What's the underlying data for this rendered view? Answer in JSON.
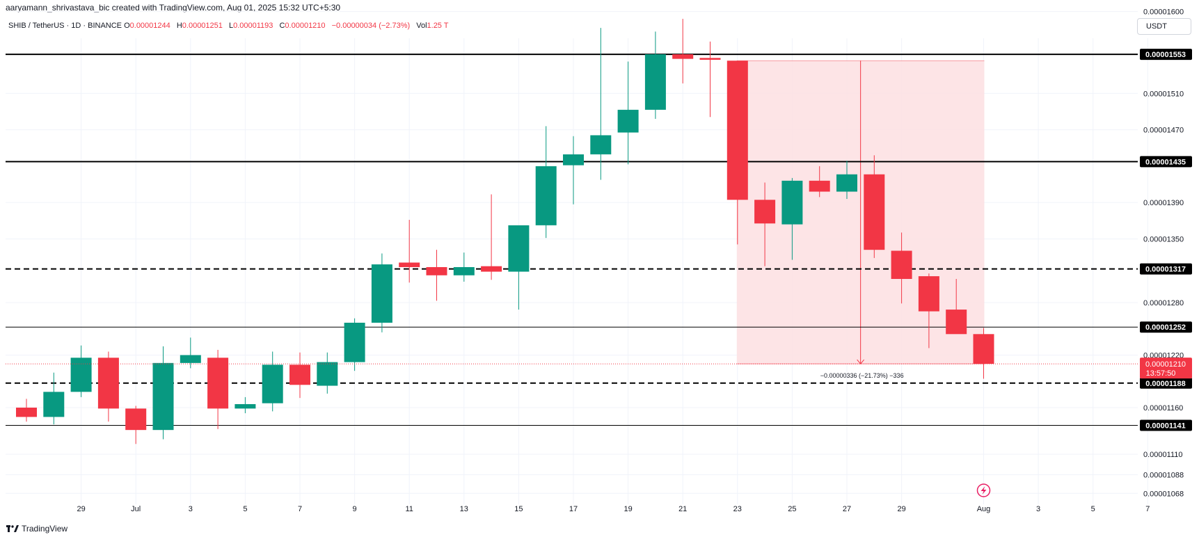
{
  "header": {
    "author_line": "aaryamann_shrivastava_bic created with TradingView.com, Aug 01, 2025 15:32 UTC+5:30",
    "symbol": "SHIB / TetherUS · 1D · BINANCE",
    "open_label": "O",
    "open": "0.00001244",
    "high_label": "H",
    "high": "0.00001251",
    "low_label": "L",
    "low": "0.00001193",
    "close_label": "C",
    "close": "0.00001210",
    "change": "−0.00000034 (−2.73%)",
    "vol_label": "Vol",
    "vol": "1.25 T"
  },
  "currency_button": "USDT",
  "footer": {
    "logo_text": "TradingView"
  },
  "colors": {
    "up": "#089981",
    "down": "#f23645",
    "grid": "#f0f3fa",
    "zone": "#fddfe2"
  },
  "chart_data": {
    "type": "candlestick",
    "title": "",
    "y_axis_ticks": [
      "0.00001600",
      "0.00001510",
      "0.00001470",
      "0.00001390",
      "0.00001350",
      "0.00001280",
      "0.00001220",
      "0.00001160",
      "0.00001110",
      "0.00001088",
      "0.00001068"
    ],
    "x_axis_ticks": [
      "29",
      "Jul",
      "3",
      "5",
      "7",
      "9",
      "11",
      "13",
      "15",
      "17",
      "19",
      "21",
      "23",
      "25",
      "27",
      "29",
      "Aug",
      "3",
      "5",
      "7"
    ],
    "candles": [
      {
        "date": "2025-06-27",
        "open": 1.16e-05,
        "high": 1.17e-05,
        "low": 1.145e-05,
        "close": 1.15e-05
      },
      {
        "date": "2025-06-28",
        "open": 1.15e-05,
        "high": 1.2e-05,
        "low": 1.142e-05,
        "close": 1.178e-05
      },
      {
        "date": "2025-06-29",
        "open": 1.178e-05,
        "high": 1.231e-05,
        "low": 1.172e-05,
        "close": 1.217e-05
      },
      {
        "date": "2025-06-30",
        "open": 1.217e-05,
        "high": 1.224e-05,
        "low": 1.145e-05,
        "close": 1.159e-05
      },
      {
        "date": "2025-07-01",
        "open": 1.159e-05,
        "high": 1.162e-05,
        "low": 1.121e-05,
        "close": 1.136e-05
      },
      {
        "date": "2025-07-02",
        "open": 1.136e-05,
        "high": 1.23e-05,
        "low": 1.126e-05,
        "close": 1.211e-05
      },
      {
        "date": "2025-07-03",
        "open": 1.211e-05,
        "high": 1.24e-05,
        "low": 1.205e-05,
        "close": 1.22e-05
      },
      {
        "date": "2025-07-04",
        "open": 1.217e-05,
        "high": 1.226e-05,
        "low": 1.137e-05,
        "close": 1.159e-05
      },
      {
        "date": "2025-07-05",
        "open": 1.159e-05,
        "high": 1.172e-05,
        "low": 1.154e-05,
        "close": 1.164e-05
      },
      {
        "date": "2025-07-06",
        "open": 1.165e-05,
        "high": 1.224e-05,
        "low": 1.156e-05,
        "close": 1.209e-05
      },
      {
        "date": "2025-07-07",
        "open": 1.209e-05,
        "high": 1.223e-05,
        "low": 1.171e-05,
        "close": 1.186e-05
      },
      {
        "date": "2025-07-08",
        "open": 1.185e-05,
        "high": 1.223e-05,
        "low": 1.176e-05,
        "close": 1.212e-05
      },
      {
        "date": "2025-07-09",
        "open": 1.212e-05,
        "high": 1.262e-05,
        "low": 1.202e-05,
        "close": 1.257e-05
      },
      {
        "date": "2025-07-10",
        "open": 1.257e-05,
        "high": 1.334e-05,
        "low": 1.246e-05,
        "close": 1.322e-05
      },
      {
        "date": "2025-07-11",
        "open": 1.324e-05,
        "high": 1.371e-05,
        "low": 1.302e-05,
        "close": 1.319e-05
      },
      {
        "date": "2025-07-12",
        "open": 1.319e-05,
        "high": 1.338e-05,
        "low": 1.282e-05,
        "close": 1.31e-05
      },
      {
        "date": "2025-07-13",
        "open": 1.31e-05,
        "high": 1.335e-05,
        "low": 1.303e-05,
        "close": 1.319e-05
      },
      {
        "date": "2025-07-14",
        "open": 1.32e-05,
        "high": 1.399e-05,
        "low": 1.305e-05,
        "close": 1.314e-05
      },
      {
        "date": "2025-07-15",
        "open": 1.314e-05,
        "high": 1.361e-05,
        "low": 1.272e-05,
        "close": 1.365e-05
      },
      {
        "date": "2025-07-16",
        "open": 1.365e-05,
        "high": 1.474e-05,
        "low": 1.351e-05,
        "close": 1.43e-05
      },
      {
        "date": "2025-07-17",
        "open": 1.431e-05,
        "high": 1.463e-05,
        "low": 1.388e-05,
        "close": 1.443e-05
      },
      {
        "date": "2025-07-18",
        "open": 1.443e-05,
        "high": 1.582e-05,
        "low": 1.415e-05,
        "close": 1.464e-05
      },
      {
        "date": "2025-07-19",
        "open": 1.467e-05,
        "high": 1.545e-05,
        "low": 1.432e-05,
        "close": 1.492e-05
      },
      {
        "date": "2025-07-20",
        "open": 1.492e-05,
        "high": 1.578e-05,
        "low": 1.482e-05,
        "close": 1.553e-05
      },
      {
        "date": "2025-07-21",
        "open": 1.553e-05,
        "high": 1.592e-05,
        "low": 1.521e-05,
        "close": 1.548e-05
      },
      {
        "date": "2025-07-22",
        "open": 1.549e-05,
        "high": 1.567e-05,
        "low": 1.484e-05,
        "close": 1.547e-05
      },
      {
        "date": "2025-07-23",
        "open": 1.546e-05,
        "high": 1.546e-05,
        "low": 1.344e-05,
        "close": 1.393e-05
      },
      {
        "date": "2025-07-24",
        "open": 1.393e-05,
        "high": 1.412e-05,
        "low": 1.32e-05,
        "close": 1.367e-05
      },
      {
        "date": "2025-07-25",
        "open": 1.366e-05,
        "high": 1.417e-05,
        "low": 1.327e-05,
        "close": 1.414e-05
      },
      {
        "date": "2025-07-26",
        "open": 1.414e-05,
        "high": 1.43e-05,
        "low": 1.396e-05,
        "close": 1.402e-05
      },
      {
        "date": "2025-07-27",
        "open": 1.402e-05,
        "high": 1.436e-05,
        "low": 1.394e-05,
        "close": 1.421e-05
      },
      {
        "date": "2025-07-28",
        "open": 1.421e-05,
        "high": 1.442e-05,
        "low": 1.329e-05,
        "close": 1.338e-05
      },
      {
        "date": "2025-07-29",
        "open": 1.337e-05,
        "high": 1.357e-05,
        "low": 1.279e-05,
        "close": 1.306e-05
      },
      {
        "date": "2025-07-30",
        "open": 1.309e-05,
        "high": 1.312e-05,
        "low": 1.228e-05,
        "close": 1.27e-05
      },
      {
        "date": "2025-07-31",
        "open": 1.272e-05,
        "high": 1.306e-05,
        "low": 1.248e-05,
        "close": 1.244e-05
      },
      {
        "date": "2025-08-01",
        "open": 1.244e-05,
        "high": 1.251e-05,
        "low": 1.193e-05,
        "close": 1.21e-05
      }
    ],
    "levels": [
      {
        "price": "0.00001553",
        "value": 1.553e-05,
        "style": "solid"
      },
      {
        "price": "0.00001435",
        "value": 1.435e-05,
        "style": "solid"
      },
      {
        "price": "0.00001317",
        "value": 1.317e-05,
        "style": "dashed"
      },
      {
        "price": "0.00001252",
        "value": 1.252e-05,
        "style": "thin"
      },
      {
        "price": "0.00001188",
        "value": 1.188e-05,
        "style": "dashed"
      },
      {
        "price": "0.00001141",
        "value": 1.141e-05,
        "style": "thin"
      }
    ],
    "current_price": {
      "price": "0.00001210",
      "value": 1.21e-05,
      "countdown": "13:57:50"
    },
    "measure": {
      "from_date": "2025-07-23",
      "to_date": "2025-08-01",
      "from_value": 1.546e-05,
      "to_value": 1.21e-05,
      "label": "−0.00000336 (−21.73%) −336"
    }
  }
}
